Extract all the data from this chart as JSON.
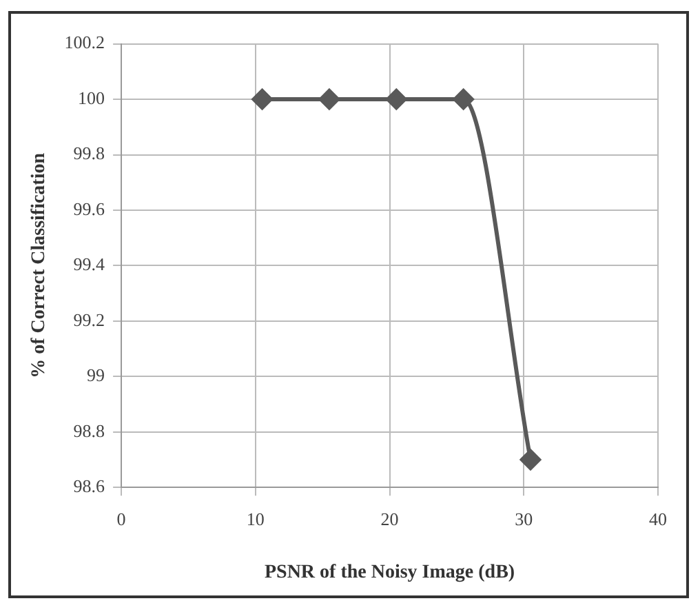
{
  "chart_data": {
    "type": "line",
    "xlabel": "PSNR of the Noisy Image (dB)",
    "ylabel": "% of Correct Classification",
    "x": [
      10.5,
      15.5,
      20.5,
      25.5,
      30.5
    ],
    "series": [
      {
        "color": "#595959",
        "values": [
          100,
          100,
          100,
          100,
          98.7
        ]
      }
    ],
    "xlim": [
      0,
      40
    ],
    "xticks": [
      0,
      10,
      20,
      30,
      40
    ],
    "ylim": [
      98.6,
      100.2
    ],
    "yticks": [
      98.6,
      98.8,
      99,
      99.2,
      99.4,
      99.6,
      99.8,
      100,
      100.2
    ],
    "grid": true,
    "marker": "diamond",
    "line_style": "solid",
    "legend": false
  }
}
